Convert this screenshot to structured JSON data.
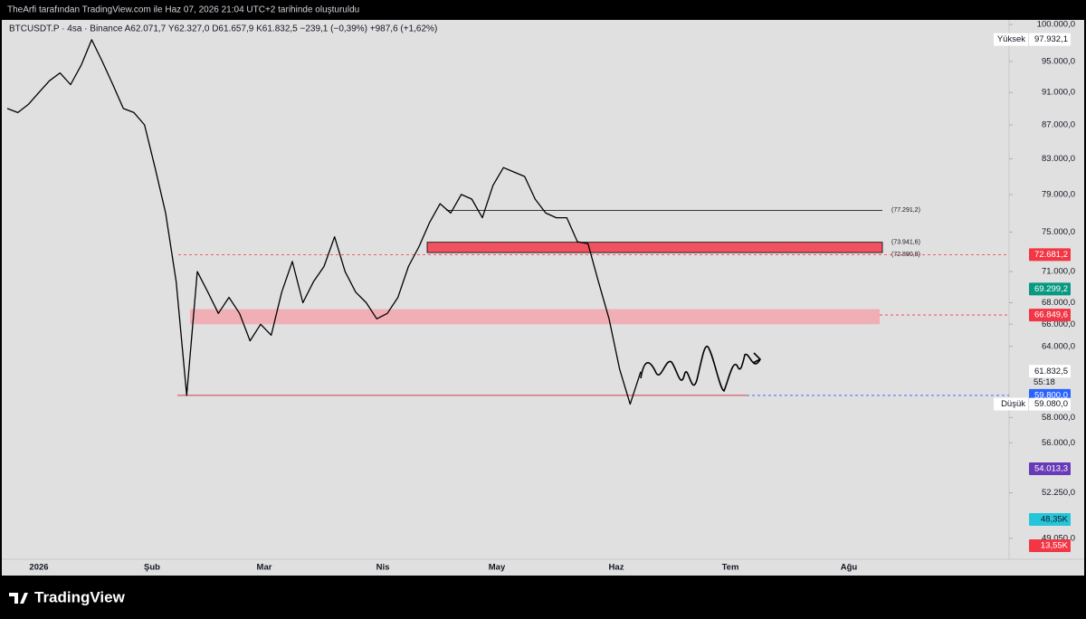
{
  "header": {
    "title": "TheArfi tarafından TradingView.com ile Haz 07, 2026 21:04 UTC+2 tarihinde oluşturuldu"
  },
  "symbol_line": "BTCUSDT.P · 4sa · Binance  A62.071,7  Y62.327,0  D61.657,9  K61.832,5  −239,1 (−0,39%)  +987,6 (+1,62%)",
  "price_scale": {
    "log": true,
    "ylim": [
      47530,
      100630
    ],
    "yticks": [
      {
        "value": 100000,
        "label": "100.000,0"
      },
      {
        "value": 95000,
        "label": "95.000,0"
      },
      {
        "value": 91000,
        "label": "91.000,0"
      },
      {
        "value": 87000,
        "label": "87.000,0"
      },
      {
        "value": 83000,
        "label": "83.000,0"
      },
      {
        "value": 79000,
        "label": "79.000,0"
      },
      {
        "value": 75000,
        "label": "75.000,0"
      },
      {
        "value": 71000,
        "label": "71.000,0"
      },
      {
        "value": 68000,
        "label": "68.000,0"
      },
      {
        "value": 66000,
        "label": "66.000,0"
      },
      {
        "value": 64000,
        "label": "64.000,0"
      },
      {
        "value": 58000,
        "label": "58.000,0"
      },
      {
        "value": 56000,
        "label": "56.000,0"
      },
      {
        "value": 52250,
        "label": "52.250,0"
      },
      {
        "value": 49050,
        "label": "49.050,0"
      }
    ]
  },
  "time_axis": [
    "2026",
    "Şub",
    "Mar",
    "Nis",
    "May",
    "Haz",
    "Tem",
    "Ağu"
  ],
  "price_series": {
    "color": "#000000",
    "values": [
      89000,
      88500,
      89500,
      91000,
      92500,
      93500,
      92000,
      94500,
      97900,
      95000,
      92000,
      89000,
      88500,
      87000,
      82000,
      77000,
      70000,
      59800,
      71000,
      69000,
      67000,
      68500,
      67000,
      64500,
      66000,
      65000,
      69000,
      72000,
      68000,
      70000,
      71500,
      74500,
      71000,
      69000,
      68000,
      66500,
      67000,
      68500,
      71500,
      73500,
      76000,
      78000,
      77000,
      79000,
      78500,
      76500,
      80000,
      82000,
      81500,
      81000,
      78500,
      77000,
      76500,
      76500,
      74000,
      73800,
      70000,
      66500,
      62000,
      59080,
      61800
    ]
  },
  "levels": [
    {
      "value": 77291.2,
      "label": "(77.291,2)"
    },
    {
      "value": 73941.6,
      "label": "(73.941,6)"
    },
    {
      "value": 72890.8,
      "label": "(72.890,8)"
    }
  ],
  "pink_zone": [
    66000,
    67400
  ],
  "price_tags": [
    {
      "value": 97932.1,
      "label": "97.932,1",
      "caption": "Yüksek",
      "color": "#ffffff"
    },
    {
      "value": 72681.2,
      "label": "72.681,2",
      "color": "#f23645"
    },
    {
      "value": 69299.2,
      "label": "69.299,2",
      "color": "#089981"
    },
    {
      "value": 66849.6,
      "label": "66.849,6",
      "color": "#f23645"
    },
    {
      "value": 61832.5,
      "label": "61.832,5",
      "countdown": "55:18",
      "color": "#ffffff"
    },
    {
      "value": 59800,
      "label": "59.800,0",
      "color": "#2962ff"
    },
    {
      "value": 59080,
      "label": "59.080,0",
      "caption": "Düşük",
      "color": "#ffffff"
    }
  ],
  "indicator_tags": [
    {
      "label": "54.013,3",
      "color": "#673ab7"
    },
    {
      "label": "48,35K",
      "color": "#26c6da"
    },
    {
      "label": "13,55K",
      "color": "#f23645"
    }
  ],
  "footer": {
    "brand": "TradingView"
  }
}
